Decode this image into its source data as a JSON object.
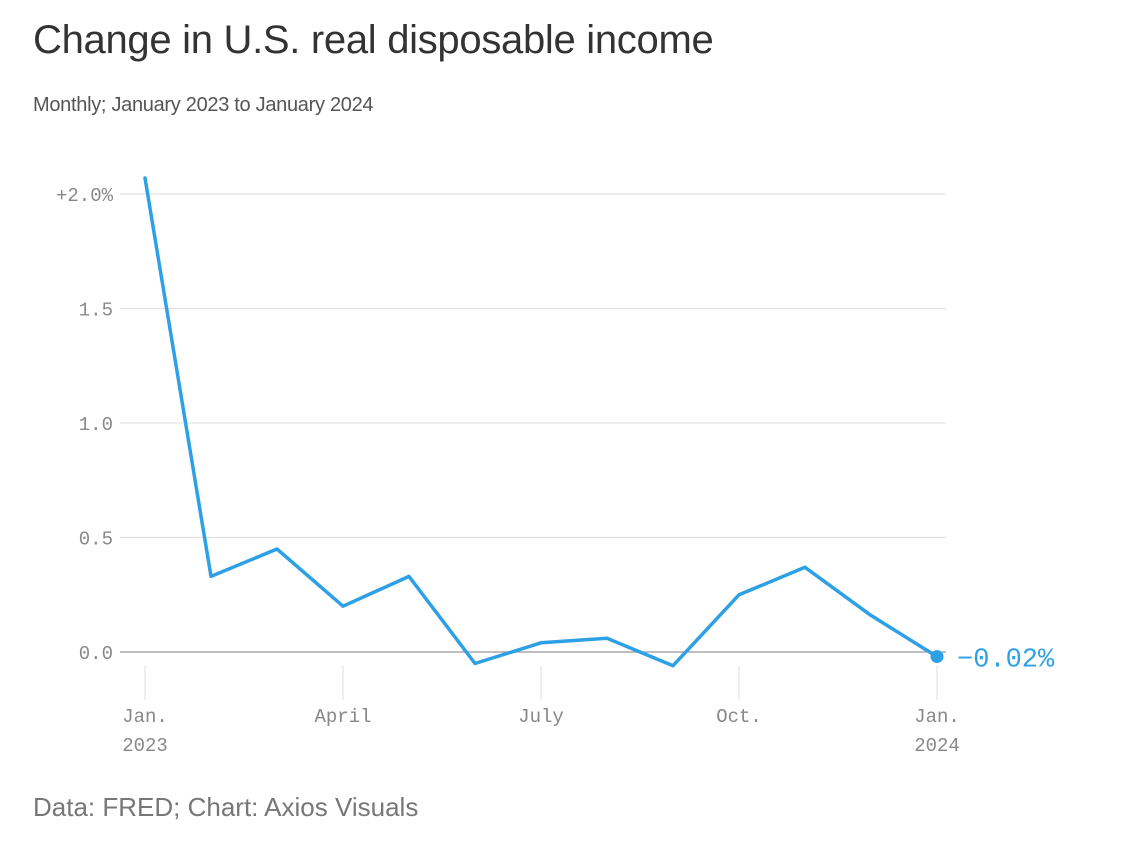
{
  "title": "Change in U.S. real disposable income",
  "subtitle": "Monthly; January 2023 to January 2024",
  "source": "Data: FRED; Chart: Axios Visuals",
  "colors": {
    "line": "#2ea1e6",
    "label": "#2ea1e6",
    "grid": "#dddddd",
    "zero_line": "#999999",
    "tick_text": "#888888"
  },
  "chart_data": {
    "type": "line",
    "x": [
      "2023-01",
      "2023-02",
      "2023-03",
      "2023-04",
      "2023-05",
      "2023-06",
      "2023-07",
      "2023-08",
      "2023-09",
      "2023-10",
      "2023-11",
      "2023-12",
      "2024-01"
    ],
    "series": [
      {
        "values": [
          2.07,
          0.33,
          0.45,
          0.2,
          0.33,
          -0.05,
          0.04,
          0.06,
          -0.06,
          0.25,
          0.37,
          0.16,
          -0.02
        ]
      }
    ],
    "ylim": [
      -0.07,
      2.1
    ],
    "y_ticks": [
      {
        "value": 2.0,
        "label": "+2.0%"
      },
      {
        "value": 1.5,
        "label": "1.5"
      },
      {
        "value": 1.0,
        "label": "1.0"
      },
      {
        "value": 0.5,
        "label": "0.5"
      },
      {
        "value": 0.0,
        "label": "0.0"
      }
    ],
    "x_ticks": [
      {
        "index": 0,
        "line1": "Jan.",
        "line2": "2023"
      },
      {
        "index": 3,
        "line1": "April",
        "line2": ""
      },
      {
        "index": 6,
        "line1": "July",
        "line2": ""
      },
      {
        "index": 9,
        "line1": "Oct.",
        "line2": ""
      },
      {
        "index": 12,
        "line1": "Jan.",
        "line2": "2024"
      }
    ],
    "end_label": "−0.02%",
    "grid": true,
    "legend": "none"
  }
}
